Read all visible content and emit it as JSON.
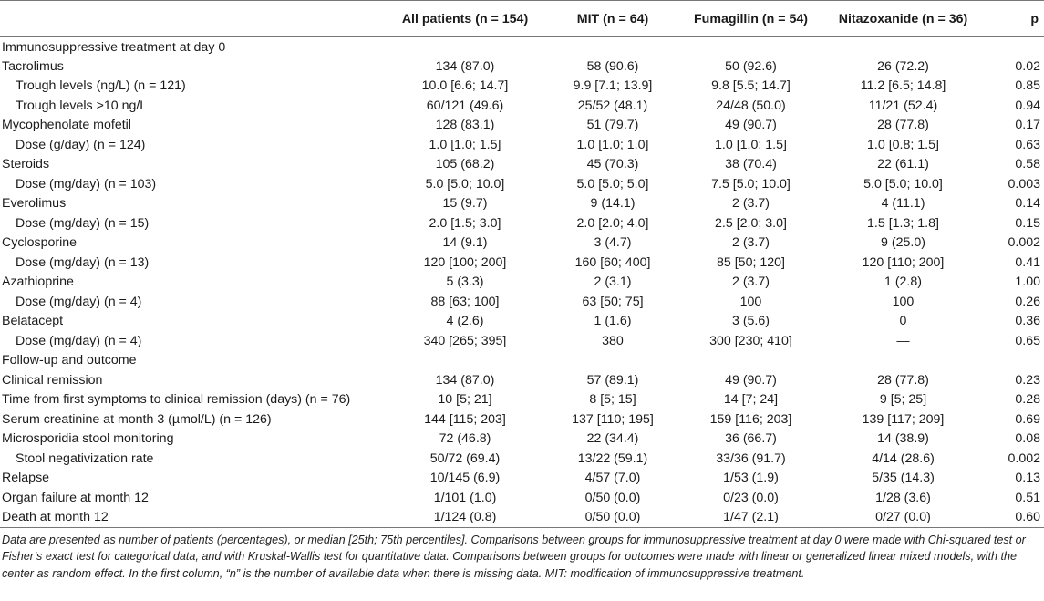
{
  "table": {
    "columns": [
      "",
      "All patients (n = 154)",
      "MIT (n = 64)",
      "Fumagillin (n = 54)",
      "Nitazoxanide (n = 36)",
      "p"
    ],
    "rows": [
      {
        "label": "Immunosuppressive treatment at day 0",
        "indent": false,
        "cells": [
          "",
          "",
          "",
          "",
          ""
        ]
      },
      {
        "label": "Tacrolimus",
        "indent": false,
        "cells": [
          "134 (87.0)",
          "58 (90.6)",
          "50 (92.6)",
          "26 (72.2)",
          "0.02"
        ]
      },
      {
        "label": "Trough levels (ng/L) (n = 121)",
        "indent": true,
        "cells": [
          "10.0 [6.6; 14.7]",
          "9.9 [7.1; 13.9]",
          "9.8 [5.5; 14.7]",
          "11.2 [6.5; 14.8]",
          "0.85"
        ]
      },
      {
        "label": "Trough levels >10 ng/L",
        "indent": true,
        "cells": [
          "60/121 (49.6)",
          "25/52 (48.1)",
          "24/48 (50.0)",
          "11/21 (52.4)",
          "0.94"
        ]
      },
      {
        "label": "Mycophenolate mofetil",
        "indent": false,
        "cells": [
          "128 (83.1)",
          "51 (79.7)",
          "49 (90.7)",
          "28 (77.8)",
          "0.17"
        ]
      },
      {
        "label": "Dose (g/day) (n = 124)",
        "indent": true,
        "cells": [
          "1.0 [1.0; 1.5]",
          "1.0 [1.0; 1.0]",
          "1.0 [1.0; 1.5]",
          "1.0 [0.8; 1.5]",
          "0.63"
        ]
      },
      {
        "label": "Steroids",
        "indent": false,
        "cells": [
          "105 (68.2)",
          "45 (70.3)",
          "38 (70.4)",
          "22 (61.1)",
          "0.58"
        ]
      },
      {
        "label": "Dose (mg/day) (n = 103)",
        "indent": true,
        "cells": [
          "5.0 [5.0; 10.0]",
          "5.0 [5.0; 5.0]",
          "7.5 [5.0; 10.0]",
          "5.0 [5.0; 10.0]",
          "0.003"
        ]
      },
      {
        "label": "Everolimus",
        "indent": false,
        "cells": [
          "15 (9.7)",
          "9 (14.1)",
          "2 (3.7)",
          "4 (11.1)",
          "0.14"
        ]
      },
      {
        "label": "Dose (mg/day) (n = 15)",
        "indent": true,
        "cells": [
          "2.0 [1.5; 3.0]",
          "2.0 [2.0; 4.0]",
          "2.5 [2.0; 3.0]",
          "1.5 [1.3; 1.8]",
          "0.15"
        ]
      },
      {
        "label": "Cyclosporine",
        "indent": false,
        "cells": [
          "14 (9.1)",
          "3 (4.7)",
          "2 (3.7)",
          "9 (25.0)",
          "0.002"
        ]
      },
      {
        "label": "Dose (mg/day) (n = 13)",
        "indent": true,
        "cells": [
          "120 [100; 200]",
          "160 [60; 400]",
          "85 [50; 120]",
          "120 [110; 200]",
          "0.41"
        ]
      },
      {
        "label": "Azathioprine",
        "indent": false,
        "cells": [
          "5 (3.3)",
          "2 (3.1)",
          "2 (3.7)",
          "1 (2.8)",
          "1.00"
        ]
      },
      {
        "label": "Dose (mg/day) (n = 4)",
        "indent": true,
        "cells": [
          "88 [63; 100]",
          "63 [50; 75]",
          "100",
          "100",
          "0.26"
        ]
      },
      {
        "label": "Belatacept",
        "indent": false,
        "cells": [
          "4 (2.6)",
          "1 (1.6)",
          "3 (5.6)",
          "0",
          "0.36"
        ]
      },
      {
        "label": "Dose (mg/day) (n = 4)",
        "indent": true,
        "cells": [
          "340 [265; 395]",
          "380",
          "300 [230; 410]",
          "—",
          "0.65"
        ]
      },
      {
        "label": "Follow-up and outcome",
        "indent": false,
        "cells": [
          "",
          "",
          "",
          "",
          ""
        ]
      },
      {
        "label": "Clinical remission",
        "indent": false,
        "cells": [
          "134 (87.0)",
          "57 (89.1)",
          "49 (90.7)",
          "28 (77.8)",
          "0.23"
        ]
      },
      {
        "label": "Time from first symptoms to clinical remission (days) (n = 76)",
        "indent": false,
        "cells": [
          "10 [5; 21]",
          "8 [5; 15]",
          "14 [7; 24]",
          "9 [5; 25]",
          "0.28"
        ]
      },
      {
        "label": "Serum creatinine at month 3 (µmol/L) (n = 126)",
        "indent": false,
        "cells": [
          "144 [115; 203]",
          "137 [110; 195]",
          "159 [116; 203]",
          "139 [117; 209]",
          "0.69"
        ]
      },
      {
        "label": "Microsporidia stool monitoring",
        "indent": false,
        "cells": [
          "72 (46.8)",
          "22 (34.4)",
          "36 (66.7)",
          "14 (38.9)",
          "0.08"
        ]
      },
      {
        "label": "Stool negativization rate",
        "indent": true,
        "cells": [
          "50/72 (69.4)",
          "13/22 (59.1)",
          "33/36 (91.7)",
          "4/14 (28.6)",
          "0.002"
        ]
      },
      {
        "label": "Relapse",
        "indent": false,
        "cells": [
          "10/145 (6.9)",
          "4/57 (7.0)",
          "1/53 (1.9)",
          "5/35 (14.3)",
          "0.13"
        ]
      },
      {
        "label": "Organ failure at month 12",
        "indent": false,
        "cells": [
          "1/101 (1.0)",
          "0/50 (0.0)",
          "0/23 (0.0)",
          "1/28 (3.6)",
          "0.51"
        ]
      },
      {
        "label": "Death at month 12",
        "indent": false,
        "cells": [
          "1/124 (0.8)",
          "0/50 (0.0)",
          "1/47 (2.1)",
          "0/27 (0.0)",
          "0.60"
        ]
      }
    ]
  },
  "footnote": "Data are presented as number of patients (percentages), or median [25th; 75th percentiles]. Comparisons between groups for immunosuppressive treatment at day 0 were made with Chi-squared test or Fisher’s exact test for categorical data, and with Kruskal-Wallis test for quantitative data. Comparisons between groups for outcomes were made with linear or generalized linear mixed models, with the center as random effect. In the first column, “n” is the number of available data when there is missing data. MIT: modification of immunosuppressive treatment."
}
